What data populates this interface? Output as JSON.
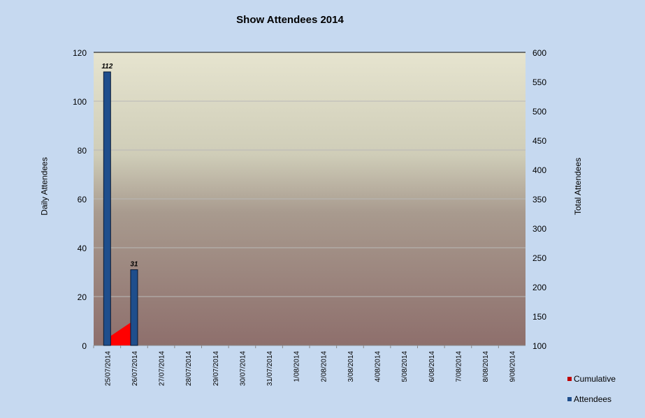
{
  "chart_data": {
    "type": "bar",
    "title": "Show Attendees  2014",
    "ylabel": "Daily Attendees",
    "y2label": "Total Attendees",
    "ylim": [
      0,
      120
    ],
    "y2lim": [
      100,
      600
    ],
    "yticks": [
      0,
      20,
      40,
      60,
      80,
      100,
      120
    ],
    "y2ticks": [
      100,
      150,
      200,
      250,
      300,
      350,
      400,
      450,
      500,
      550,
      600
    ],
    "grid": true,
    "legend": "right",
    "categories": [
      "25/07/2014",
      "26/07/2014",
      "27/07/2014",
      "28/07/2014",
      "29/07/2014",
      "30/07/2014",
      "31/07/2014",
      "1/08/2014",
      "2/08/2014",
      "3/08/2014",
      "4/08/2014",
      "5/08/2014",
      "6/08/2014",
      "7/08/2014",
      "8/08/2014",
      "9/08/2014"
    ],
    "series": [
      {
        "name": "Attendees",
        "type": "bar",
        "axis": "left",
        "color": "#1f4e8c",
        "values": [
          112,
          31,
          null,
          null,
          null,
          null,
          null,
          null,
          null,
          null,
          null,
          null,
          null,
          null,
          null,
          null
        ],
        "data_labels": [
          "112",
          "31"
        ]
      },
      {
        "name": "Cumulative",
        "type": "area",
        "axis": "right",
        "color": "#ff0000",
        "values": [
          112,
          143,
          null,
          null,
          null,
          null,
          null,
          null,
          null,
          null,
          null,
          null,
          null,
          null,
          null,
          null
        ]
      }
    ]
  }
}
